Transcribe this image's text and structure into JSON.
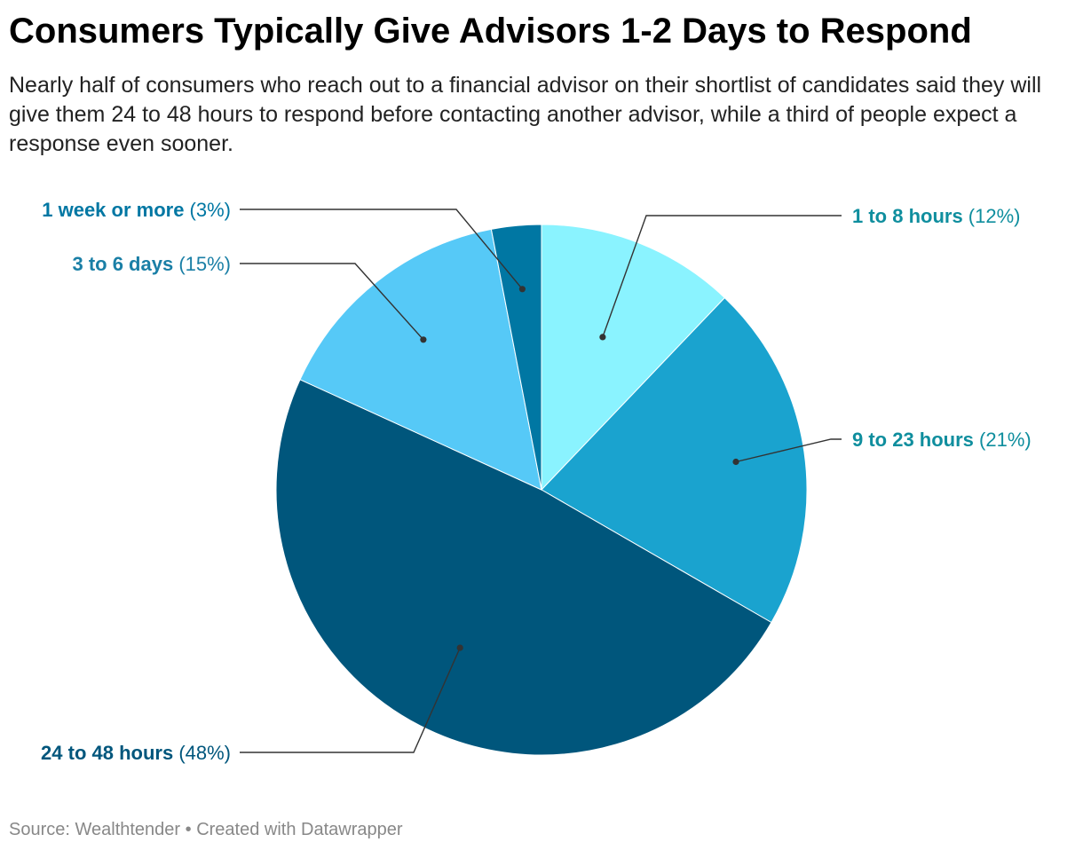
{
  "header": {
    "title": "Consumers Typically Give Advisors 1-2 Days to Respond",
    "subtitle": "Nearly half of consumers who reach out to a financial advisor on their shortlist of candidates said they will give them 24 to 48 hours to respond before contacting another advisor, while a third of people expect a response even sooner."
  },
  "footer": {
    "source": "Source: Wealthtender • Created with Datawrapper"
  },
  "chart_data": {
    "type": "pie",
    "title": "Consumers Typically Give Advisors 1-2 Days to Respond",
    "slices": [
      {
        "label": "1 to 8 hours",
        "value": 12,
        "value_label": "(12%)",
        "color": "#8af3ff",
        "label_color": "#0f8e9e",
        "label_side": "right"
      },
      {
        "label": "9 to 23 hours",
        "value": 21,
        "value_label": "(21%)",
        "color": "#1aa3cf",
        "label_color": "#0f8e9e",
        "label_side": "right"
      },
      {
        "label": "24 to 48 hours",
        "value": 48,
        "value_label": "(48%)",
        "color": "#00567c",
        "label_color": "#00567c",
        "label_side": "left"
      },
      {
        "label": "3 to 6 days",
        "value": 15,
        "value_label": "(15%)",
        "color": "#56c9f7",
        "label_color": "#1a7fa6",
        "label_side": "left"
      },
      {
        "label": "1 week or more",
        "value": 3,
        "value_label": "(3%)",
        "color": "#0077a3",
        "label_color": "#0077a3",
        "label_side": "left"
      }
    ]
  }
}
